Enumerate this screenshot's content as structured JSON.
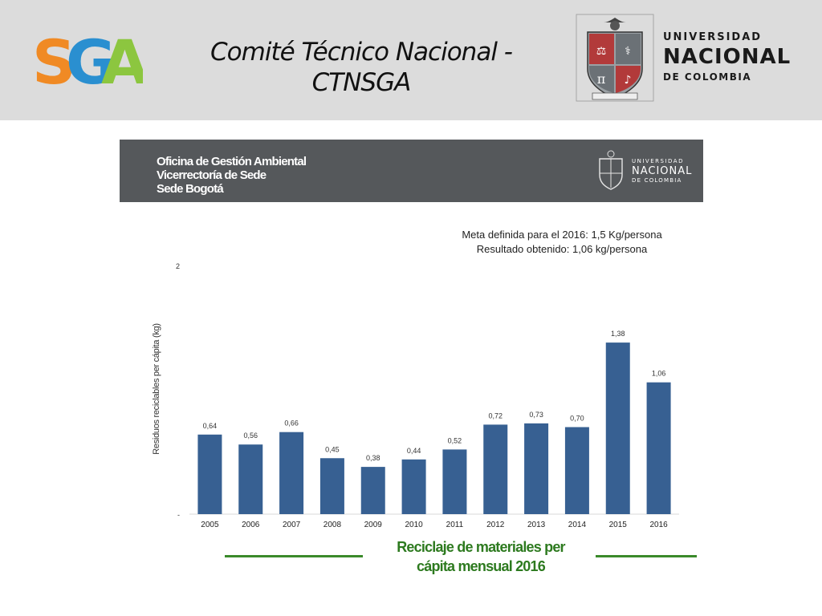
{
  "header": {
    "title": "Comité Técnico Nacional - CTNSGA",
    "title_line1": "Comité Técnico Nacional -",
    "title_line2": "CTNSGA",
    "sga_logo": {
      "letters": "SGA",
      "colors": [
        "#f08a24",
        "#2a8fd0",
        "#8cc63f"
      ]
    },
    "university": {
      "line1": "UNIVERSIDAD",
      "line2": "NACIONAL",
      "line3": "DE COLOMBIA"
    }
  },
  "office_bar": {
    "line1": "Oficina de Gestión Ambiental",
    "line2": "Vicerrectoría de Sede",
    "line3": "Sede Bogotá",
    "university": {
      "line1": "UNIVERSIDAD",
      "line2": "NACIONAL",
      "line3": "DE COLOMBIA"
    }
  },
  "chart_data": {
    "type": "bar",
    "categories": [
      "2005",
      "2006",
      "2007",
      "2008",
      "2009",
      "2010",
      "2011",
      "2012",
      "2013",
      "2014",
      "2015",
      "2016"
    ],
    "values": [
      0.64,
      0.56,
      0.66,
      0.45,
      0.38,
      0.44,
      0.52,
      0.72,
      0.73,
      0.7,
      1.38,
      1.06
    ],
    "value_labels": [
      "0,64",
      "0,56",
      "0,66",
      "0,45",
      "0,38",
      "0,44",
      "0,52",
      "0,72",
      "0,73",
      "0,70",
      "1,38",
      "1,06"
    ],
    "ylim": [
      0,
      2
    ],
    "y_ticks": [
      {
        "value": 0,
        "label": "-"
      },
      {
        "value": 2,
        "label": "2"
      }
    ],
    "ylabel": "Residuos reciclables per cápita (kg)",
    "xlabel": "",
    "annotation_line1": "Meta definida para el 2016:  1,5 Kg/persona",
    "annotation_line2": "Resultado obtenido: 1,06 kg/persona",
    "subtitle_line1": "Reciclaje de materiales per",
    "subtitle_line2": "cápita mensual 2016",
    "bar_color": "#376092",
    "grid": false
  }
}
